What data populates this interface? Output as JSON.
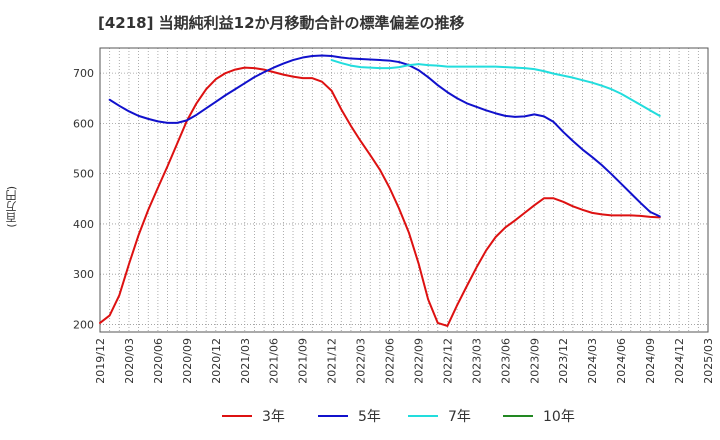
{
  "header": {
    "title": "[4218]  当期純利益12か月移動合計の標準偏差の推移"
  },
  "chart_data": {
    "type": "line",
    "title": "[4218]  当期純利益12か月移動合計の標準偏差の推移",
    "ylabel": "(百万円)",
    "xlabel": "",
    "ylim": [
      185,
      750
    ],
    "yticks": [
      200,
      300,
      400,
      500,
      600,
      700
    ],
    "xlim": [
      "2019-12",
      "2025-03"
    ],
    "xticks": [
      "2019/12",
      "2020/03",
      "2020/06",
      "2020/09",
      "2020/12",
      "2021/03",
      "2021/06",
      "2021/09",
      "2021/12",
      "2022/03",
      "2022/06",
      "2022/09",
      "2022/12",
      "2023/03",
      "2023/06",
      "2023/09",
      "2023/12",
      "2024/03",
      "2024/06",
      "2024/09",
      "2024/12",
      "2025/03"
    ],
    "grid": true,
    "legend_position": "bottom",
    "series": [
      {
        "name": "3年",
        "color": "#dd1111",
        "points": [
          [
            "2019-12",
            203
          ],
          [
            "2020-01",
            218
          ],
          [
            "2020-02",
            258
          ],
          [
            "2020-03",
            320
          ],
          [
            "2020-04",
            378
          ],
          [
            "2020-05",
            428
          ],
          [
            "2020-06",
            472
          ],
          [
            "2020-07",
            515
          ],
          [
            "2020-08",
            560
          ],
          [
            "2020-09",
            605
          ],
          [
            "2020-10",
            640
          ],
          [
            "2020-11",
            668
          ],
          [
            "2020-12",
            688
          ],
          [
            "2021-01",
            700
          ],
          [
            "2021-02",
            707
          ],
          [
            "2021-03",
            711
          ],
          [
            "2021-04",
            710
          ],
          [
            "2021-05",
            707
          ],
          [
            "2021-06",
            702
          ],
          [
            "2021-07",
            697
          ],
          [
            "2021-08",
            693
          ],
          [
            "2021-09",
            690
          ],
          [
            "2021-10",
            690
          ],
          [
            "2021-11",
            683
          ],
          [
            "2021-12",
            665
          ],
          [
            "2022-01",
            628
          ],
          [
            "2022-02",
            595
          ],
          [
            "2022-03",
            565
          ],
          [
            "2022-04",
            537
          ],
          [
            "2022-05",
            508
          ],
          [
            "2022-06",
            472
          ],
          [
            "2022-07",
            430
          ],
          [
            "2022-08",
            383
          ],
          [
            "2022-09",
            322
          ],
          [
            "2022-10",
            250
          ],
          [
            "2022-11",
            203
          ],
          [
            "2022-12",
            197
          ],
          [
            "2023-01",
            238
          ],
          [
            "2023-02",
            276
          ],
          [
            "2023-03",
            313
          ],
          [
            "2023-04",
            347
          ],
          [
            "2023-05",
            374
          ],
          [
            "2023-06",
            393
          ],
          [
            "2023-07",
            407
          ],
          [
            "2023-08",
            422
          ],
          [
            "2023-09",
            437
          ],
          [
            "2023-10",
            451
          ],
          [
            "2023-11",
            451
          ],
          [
            "2023-12",
            444
          ],
          [
            "2024-01",
            435
          ],
          [
            "2024-02",
            428
          ],
          [
            "2024-03",
            422
          ],
          [
            "2024-04",
            419
          ],
          [
            "2024-05",
            417
          ],
          [
            "2024-06",
            417
          ],
          [
            "2024-07",
            417
          ],
          [
            "2024-08",
            416
          ],
          [
            "2024-09",
            414
          ],
          [
            "2024-10",
            413
          ]
        ]
      },
      {
        "name": "5年",
        "color": "#1111cc",
        "points": [
          [
            "2020-01",
            647
          ],
          [
            "2020-02",
            635
          ],
          [
            "2020-03",
            624
          ],
          [
            "2020-04",
            615
          ],
          [
            "2020-05",
            609
          ],
          [
            "2020-06",
            604
          ],
          [
            "2020-07",
            601
          ],
          [
            "2020-08",
            601
          ],
          [
            "2020-09",
            606
          ],
          [
            "2020-10",
            617
          ],
          [
            "2020-11",
            630
          ],
          [
            "2020-12",
            643
          ],
          [
            "2021-01",
            656
          ],
          [
            "2021-02",
            668
          ],
          [
            "2021-03",
            680
          ],
          [
            "2021-04",
            692
          ],
          [
            "2021-05",
            702
          ],
          [
            "2021-06",
            711
          ],
          [
            "2021-07",
            719
          ],
          [
            "2021-08",
            726
          ],
          [
            "2021-09",
            731
          ],
          [
            "2021-10",
            734
          ],
          [
            "2021-11",
            735
          ],
          [
            "2021-12",
            734
          ],
          [
            "2022-01",
            731
          ],
          [
            "2022-02",
            729
          ],
          [
            "2022-03",
            728
          ],
          [
            "2022-04",
            727
          ],
          [
            "2022-05",
            726
          ],
          [
            "2022-06",
            725
          ],
          [
            "2022-07",
            722
          ],
          [
            "2022-08",
            716
          ],
          [
            "2022-09",
            706
          ],
          [
            "2022-10",
            692
          ],
          [
            "2022-11",
            676
          ],
          [
            "2022-12",
            662
          ],
          [
            "2023-01",
            650
          ],
          [
            "2023-02",
            640
          ],
          [
            "2023-03",
            633
          ],
          [
            "2023-04",
            626
          ],
          [
            "2023-05",
            620
          ],
          [
            "2023-06",
            615
          ],
          [
            "2023-07",
            613
          ],
          [
            "2023-08",
            614
          ],
          [
            "2023-09",
            618
          ],
          [
            "2023-10",
            614
          ],
          [
            "2023-11",
            603
          ],
          [
            "2023-12",
            583
          ],
          [
            "2024-01",
            565
          ],
          [
            "2024-02",
            548
          ],
          [
            "2024-03",
            533
          ],
          [
            "2024-04",
            517
          ],
          [
            "2024-05",
            499
          ],
          [
            "2024-06",
            480
          ],
          [
            "2024-07",
            461
          ],
          [
            "2024-08",
            442
          ],
          [
            "2024-09",
            424
          ],
          [
            "2024-10",
            415
          ]
        ]
      },
      {
        "name": "7年",
        "color": "#22dddd",
        "points": [
          [
            "2021-12",
            726
          ],
          [
            "2022-01",
            720
          ],
          [
            "2022-02",
            715
          ],
          [
            "2022-03",
            712
          ],
          [
            "2022-04",
            711
          ],
          [
            "2022-05",
            710
          ],
          [
            "2022-06",
            710
          ],
          [
            "2022-07",
            712
          ],
          [
            "2022-08",
            716
          ],
          [
            "2022-09",
            718
          ],
          [
            "2022-10",
            716
          ],
          [
            "2022-11",
            715
          ],
          [
            "2022-12",
            713
          ],
          [
            "2023-01",
            713
          ],
          [
            "2023-02",
            713
          ],
          [
            "2023-03",
            713
          ],
          [
            "2023-04",
            713
          ],
          [
            "2023-05",
            713
          ],
          [
            "2023-06",
            712
          ],
          [
            "2023-07",
            711
          ],
          [
            "2023-08",
            710
          ],
          [
            "2023-09",
            708
          ],
          [
            "2023-10",
            704
          ],
          [
            "2023-11",
            699
          ],
          [
            "2023-12",
            695
          ],
          [
            "2024-01",
            691
          ],
          [
            "2024-02",
            686
          ],
          [
            "2024-03",
            681
          ],
          [
            "2024-04",
            675
          ],
          [
            "2024-05",
            668
          ],
          [
            "2024-06",
            659
          ],
          [
            "2024-07",
            648
          ],
          [
            "2024-08",
            637
          ],
          [
            "2024-09",
            626
          ],
          [
            "2024-10",
            615
          ]
        ]
      },
      {
        "name": "10年",
        "color": "#228822",
        "points": []
      }
    ]
  }
}
